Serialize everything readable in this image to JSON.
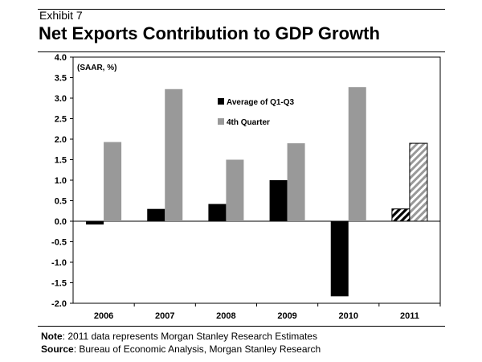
{
  "header": {
    "exhibit": "Exhibit 7",
    "title": "Net Exports Contribution to GDP Growth"
  },
  "chart_data": {
    "type": "bar",
    "title": "Net Exports Contribution to GDP Growth",
    "unit_label": "(SAAR, %)",
    "xlabel": "",
    "ylabel": "",
    "ylim": [
      -2.0,
      4.0
    ],
    "yticks": [
      "4.0",
      "3.5",
      "3.0",
      "2.5",
      "2.0",
      "1.5",
      "1.0",
      "0.5",
      "0.0",
      "-0.5",
      "-1.0",
      "-1.5",
      "-2.0"
    ],
    "categories": [
      "2006",
      "2007",
      "2008",
      "2009",
      "2010",
      "2011"
    ],
    "series": [
      {
        "name": "Average of Q1-Q3",
        "color": "#000000",
        "values": [
          -0.08,
          0.3,
          0.42,
          1.0,
          -1.83,
          0.3
        ]
      },
      {
        "name": "4th Quarter",
        "color": "#999999",
        "values": [
          1.93,
          3.22,
          1.5,
          1.9,
          3.27,
          1.9
        ]
      }
    ],
    "estimated_categories": [
      "2011"
    ],
    "legend": "top-center",
    "grid": false
  },
  "footer": {
    "note_label": "Note",
    "note_text": ": 2011 data represents Morgan Stanley Research Estimates",
    "source_label": "Source",
    "source_text": ": Bureau of Economic Analysis, Morgan Stanley Research"
  }
}
